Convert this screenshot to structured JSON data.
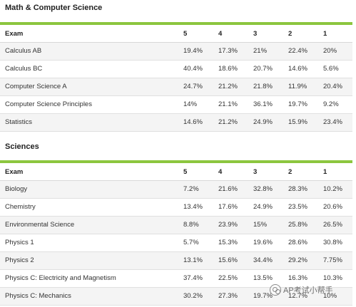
{
  "sections": [
    {
      "title": "Math & Computer Science",
      "headers": [
        "Exam",
        "5",
        "4",
        "3",
        "2",
        "1"
      ],
      "rows": [
        [
          "Calculus AB",
          "19.4%",
          "17.3%",
          "21%",
          "22.4%",
          "20%"
        ],
        [
          "Calculus BC",
          "40.4%",
          "18.6%",
          "20.7%",
          "14.6%",
          "5.6%"
        ],
        [
          "Computer Science A",
          "24.7%",
          "21.2%",
          "21.8%",
          "11.9%",
          "20.4%"
        ],
        [
          "Computer Science Principles",
          "14%",
          "21.1%",
          "36.1%",
          "19.7%",
          "9.2%"
        ],
        [
          "Statistics",
          "14.6%",
          "21.2%",
          "24.9%",
          "15.9%",
          "23.4%"
        ]
      ]
    },
    {
      "title": "Sciences",
      "headers": [
        "Exam",
        "5",
        "4",
        "3",
        "2",
        "1"
      ],
      "rows": [
        [
          "Biology",
          "7.2%",
          "21.6%",
          "32.8%",
          "28.3%",
          "10.2%"
        ],
        [
          "Chemistry",
          "13.4%",
          "17.6%",
          "24.9%",
          "23.5%",
          "20.6%"
        ],
        [
          "Environmental Science",
          "8.8%",
          "23.9%",
          "15%",
          "25.8%",
          "26.5%"
        ],
        [
          "Physics 1",
          "5.7%",
          "15.3%",
          "19.6%",
          "28.6%",
          "30.8%"
        ],
        [
          "Physics 2",
          "13.1%",
          "15.6%",
          "34.4%",
          "29.2%",
          "7.75%"
        ],
        [
          "Physics C: Electricity and Magnetism",
          "37.4%",
          "22.5%",
          "13.5%",
          "16.3%",
          "10.3%"
        ],
        [
          "Physics C: Mechanics",
          "30.2%",
          "27.3%",
          "19.7%",
          "12.7%",
          "10%"
        ]
      ]
    }
  ],
  "watermark": {
    "text": "AP考试小帮手",
    "icon": "wechat-icon"
  },
  "colors": {
    "accent_bar": "#8cc63f",
    "row_shade": "#f4f4f4"
  }
}
